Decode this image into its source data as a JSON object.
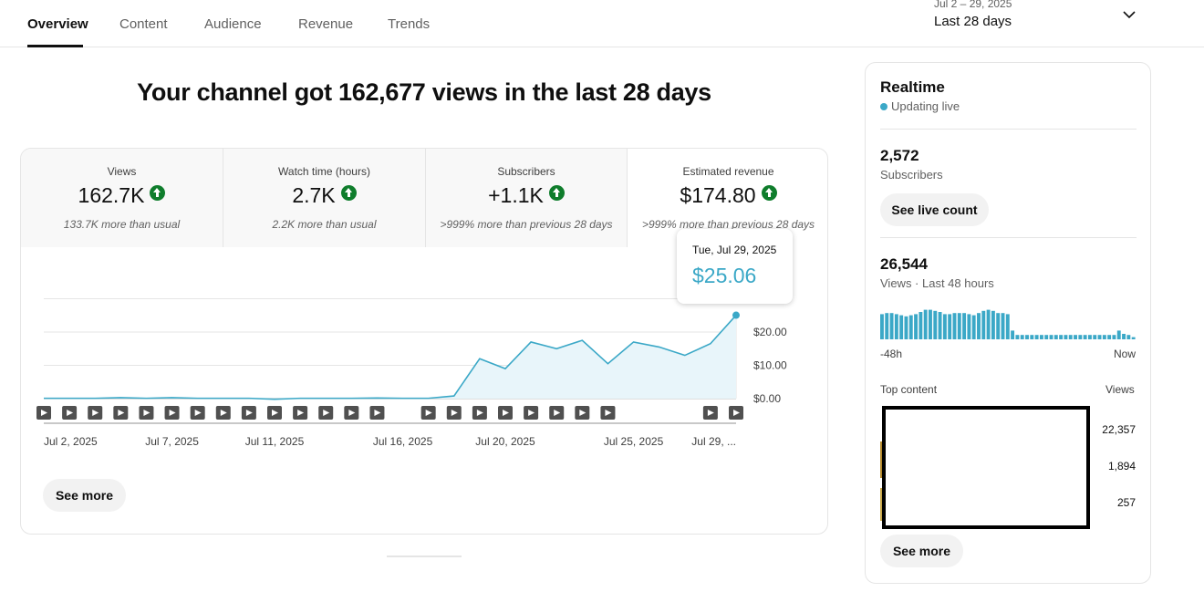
{
  "tabs": [
    "Overview",
    "Content",
    "Audience",
    "Revenue",
    "Trends"
  ],
  "date_range": {
    "sub": "Jul 2 – 29, 2025",
    "main": "Last 28 days"
  },
  "headline": "Your channel got 162,677 views in the last 28 days",
  "metrics": [
    {
      "label": "Views",
      "value": "162.7K",
      "note": "133.7K more than usual"
    },
    {
      "label": "Watch time (hours)",
      "value": "2.7K",
      "note": "2.2K more than usual"
    },
    {
      "label": "Subscribers",
      "value": "+1.1K",
      "note": ">999% more than previous 28 days"
    },
    {
      "label": "Estimated revenue",
      "value": "$174.80",
      "note": ">999% more than previous 28 days"
    }
  ],
  "tooltip": {
    "date": "Tue, Jul 29, 2025",
    "value": "$25.06"
  },
  "see_more_label": "See more",
  "chart_data": {
    "type": "area",
    "x": [
      "Jul 2, 2025",
      "Jul 3",
      "Jul 4",
      "Jul 5",
      "Jul 6",
      "Jul 7",
      "Jul 8",
      "Jul 9",
      "Jul 10",
      "Jul 11",
      "Jul 12",
      "Jul 13",
      "Jul 14",
      "Jul 15",
      "Jul 16",
      "Jul 17",
      "Jul 18",
      "Jul 19",
      "Jul 20",
      "Jul 21",
      "Jul 22",
      "Jul 23",
      "Jul 24",
      "Jul 25",
      "Jul 26",
      "Jul 27",
      "Jul 28",
      "Jul 29, 2025"
    ],
    "xtick_labels": [
      "Jul 2, 2025",
      "Jul 7, 2025",
      "Jul 11, 2025",
      "Jul 16, 2025",
      "Jul 20, 2025",
      "Jul 25, 2025",
      "Jul 29, ..."
    ],
    "xtick_days": [
      2,
      7,
      11,
      16,
      20,
      25,
      29
    ],
    "series": [
      {
        "values": [
          0.1,
          0.1,
          0.1,
          0.3,
          0.1,
          0.3,
          0.1,
          0.1,
          0.1,
          -0.2,
          0.1,
          0.1,
          0.1,
          0.2,
          0.1,
          0.1,
          0.8,
          12.0,
          9.0,
          17.0,
          15.0,
          17.5,
          10.5,
          17.0,
          15.5,
          13.0,
          16.5,
          25.06
        ]
      }
    ],
    "ylim": [
      0,
      30
    ],
    "ytick_labels": [
      "$0.00",
      "$10.00",
      "$20.00"
    ],
    "yticks": [
      0,
      10,
      20
    ],
    "video_marker_days": [
      2,
      3,
      4,
      5,
      6,
      7,
      8,
      9,
      10,
      11,
      12,
      13,
      14,
      15,
      17,
      18,
      19,
      20,
      21,
      22,
      23,
      24,
      28,
      29
    ],
    "grid": true
  },
  "realtime": {
    "title": "Realtime",
    "live_label": "Updating live",
    "subscribers_value": "2,572",
    "subscribers_label": "Subscribers",
    "see_live_label": "See live count",
    "views_value": "26,544",
    "views_label": "Views · Last 48 hours",
    "mini_start": "-48h",
    "mini_end": "Now",
    "mini_bars": [
      46,
      48,
      48,
      46,
      44,
      42,
      44,
      46,
      50,
      54,
      54,
      52,
      50,
      46,
      46,
      48,
      48,
      48,
      46,
      44,
      48,
      52,
      54,
      52,
      48,
      48,
      46,
      16,
      8,
      8,
      8,
      8,
      8,
      8,
      8,
      8,
      8,
      8,
      8,
      8,
      8,
      8,
      8,
      8,
      8,
      8,
      8,
      8,
      8,
      16,
      10,
      8,
      4
    ],
    "top_content_label": "Top content",
    "top_views_label": "Views",
    "top_counts": [
      "22,357",
      "1,894",
      "257"
    ],
    "see_more_label": "See more"
  },
  "colors": {
    "accent": "#3ba8c7",
    "up_badge": "#0f7d2c"
  }
}
